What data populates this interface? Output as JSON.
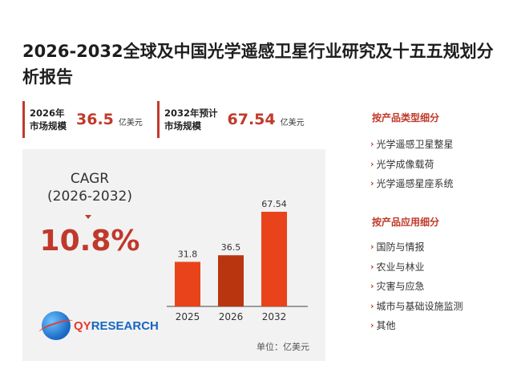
{
  "title": "2026-2032全球及中国光学遥感卫星行业研究及十五五规划分析报告",
  "stats": [
    {
      "label": "2026年\n市场规模",
      "value": "36.5",
      "unit": "亿美元"
    },
    {
      "label": "2032年预计\n市场规模",
      "value": "67.54",
      "unit": "亿美元"
    }
  ],
  "cagr": {
    "label": "CAGR\n(2026-2032)",
    "value": "10.8%"
  },
  "logo": {
    "prefix": "QY",
    "suffix": "RESEARCH"
  },
  "unit_note": "单位：亿美元",
  "colors": {
    "accent": "#c0392b",
    "bar": "#e8431b",
    "bar_dark": "#b83510"
  },
  "chart_data": {
    "type": "bar",
    "categories": [
      "2025",
      "2026",
      "2032"
    ],
    "values": [
      31.8,
      36.5,
      67.54
    ],
    "value_labels": [
      "31.8",
      "36.5",
      "67.54"
    ],
    "title": "",
    "xlabel": "",
    "ylabel": "",
    "ylim": [
      0,
      70
    ],
    "grid": false
  },
  "sidebar": {
    "type_heading": "按产品类型细分",
    "type_items": [
      "光学遥感卫星整星",
      "光学成像载荷",
      "光学遥感星座系统"
    ],
    "app_heading": "按产品应用细分",
    "app_items": [
      "国防与情报",
      "农业与林业",
      "灾害与应急",
      "城市与基础设施监测",
      "其他"
    ]
  }
}
